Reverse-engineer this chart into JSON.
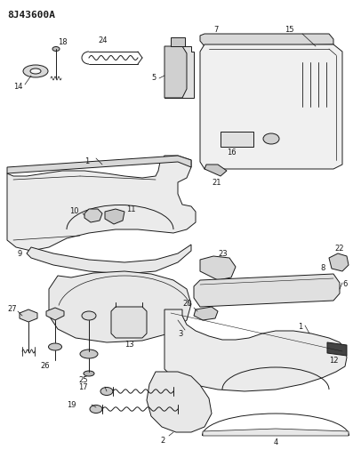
{
  "title": "8J43600A",
  "bg": "#ffffff",
  "lc": "#1a1a1a",
  "figsize": [
    3.97,
    5.33
  ],
  "dpi": 100
}
